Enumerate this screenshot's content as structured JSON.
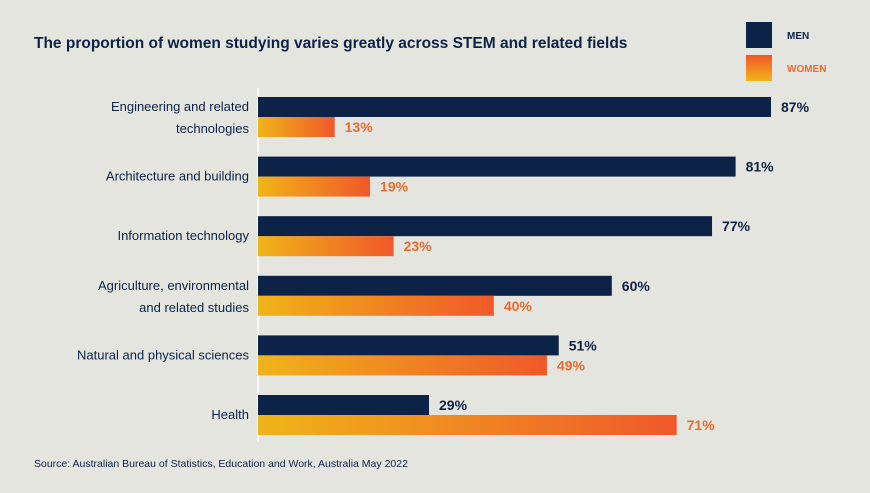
{
  "chart_data": {
    "type": "bar",
    "orientation": "horizontal",
    "title": "The proportion of women studying varies greatly across STEM and related fields",
    "categories": [
      [
        "Engineering and related",
        "technologies"
      ],
      [
        "Architecture and building"
      ],
      [
        "Information technology"
      ],
      [
        "Agriculture, environmental",
        "and related studies"
      ],
      [
        "Natural and physical sciences"
      ],
      [
        "Health"
      ]
    ],
    "series": [
      {
        "name": "MEN",
        "values": [
          87,
          81,
          77,
          60,
          51,
          29
        ],
        "color": "#0d2247"
      },
      {
        "name": "WOMEN",
        "values": [
          13,
          19,
          23,
          40,
          49,
          71
        ],
        "color_start": "#f0b41a",
        "color_end": "#f0582a"
      }
    ],
    "value_suffix": "%",
    "xlim": [
      0,
      87
    ],
    "grid": false,
    "legend": "top-right",
    "source": "Source: Australian Bureau of Statistics, Education and Work, Australia May 2022"
  }
}
